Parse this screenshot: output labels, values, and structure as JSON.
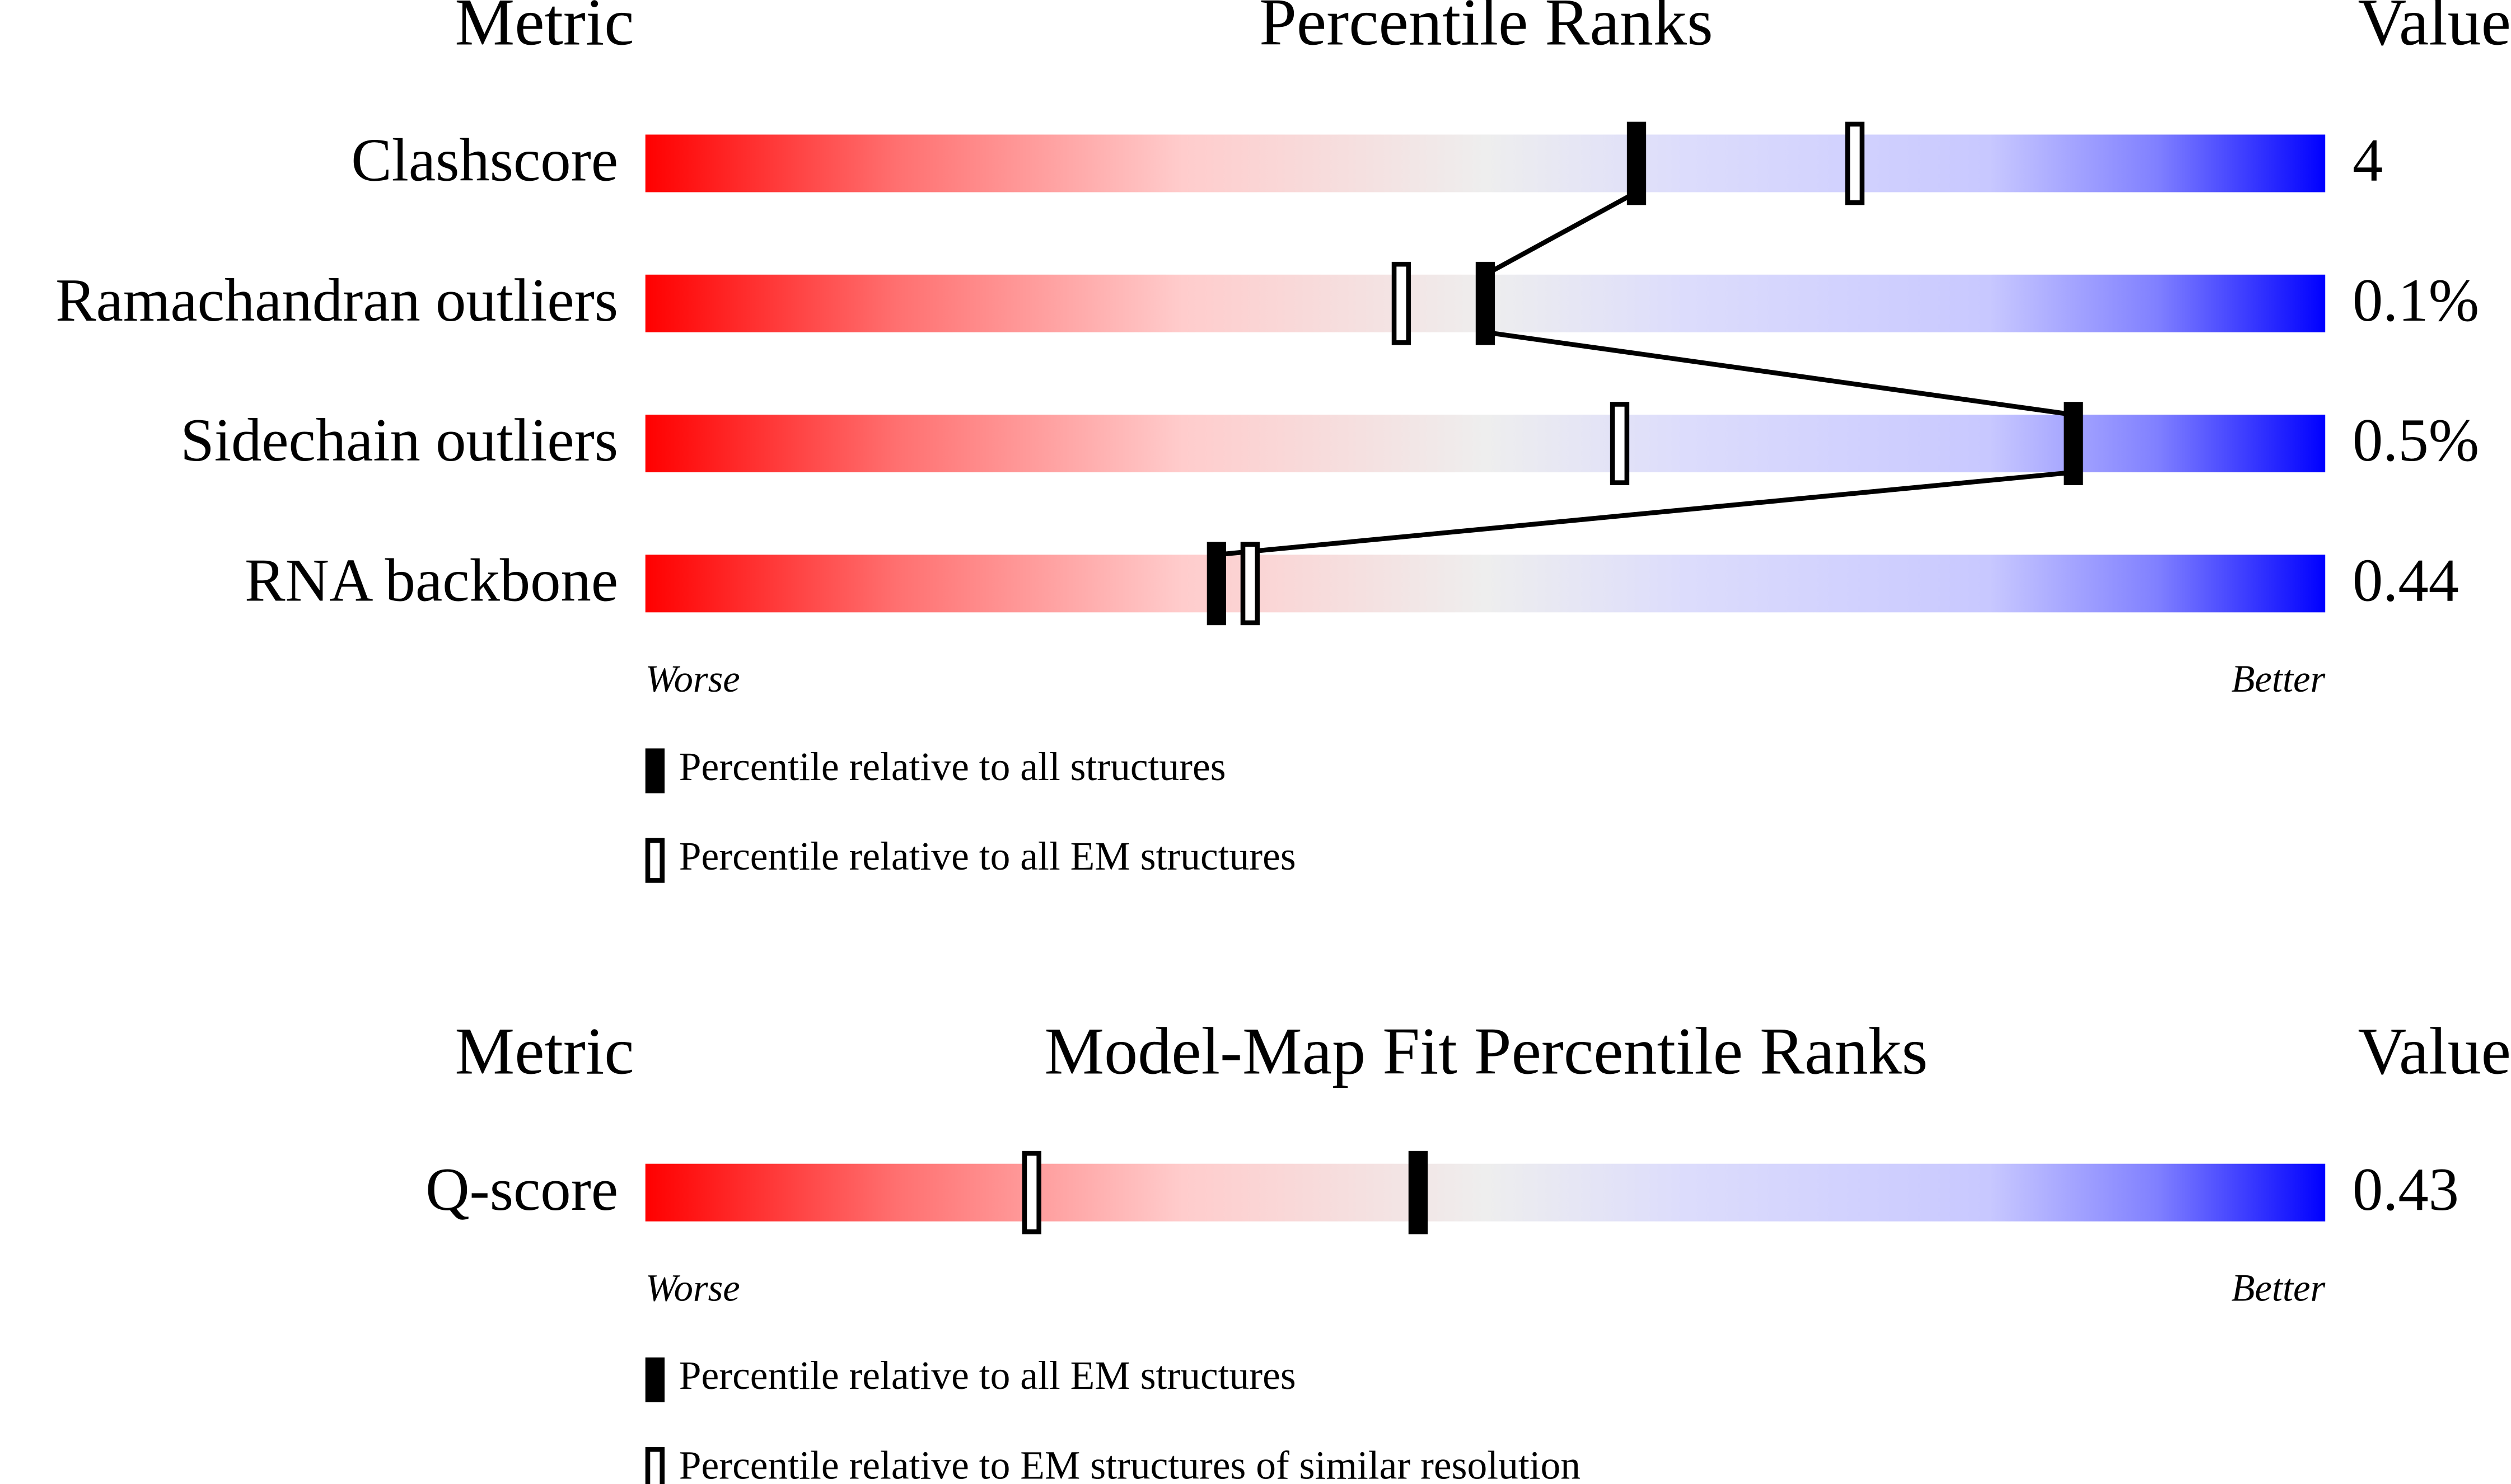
{
  "panels": [
    {
      "headers": {
        "metric": "Metric",
        "title": "Percentile Ranks",
        "value": "Value"
      },
      "xlim": [
        0,
        100
      ],
      "rows": [
        {
          "metric": "Clashscore",
          "value": "4",
          "filled": 59,
          "open": 72
        },
        {
          "metric": "Ramachandran outliers",
          "value": "0.1%",
          "filled": 50,
          "open": 45
        },
        {
          "metric": "Sidechain outliers",
          "value": "0.5%",
          "filled": 85,
          "open": 58
        },
        {
          "metric": "RNA backbone",
          "value": "0.44",
          "filled": 34,
          "open": 36
        }
      ],
      "worse": "Worse",
      "better": "Better",
      "legend": {
        "filled": "Percentile relative to all structures",
        "open": "Percentile relative to all EM structures"
      }
    },
    {
      "headers": {
        "metric": "Metric",
        "title": "Model-Map Fit Percentile Ranks",
        "value": "Value"
      },
      "xlim": [
        0,
        100
      ],
      "rows": [
        {
          "metric": "Q-score",
          "value": "0.43",
          "filled": 46,
          "open": 23
        }
      ],
      "worse": "Worse",
      "better": "Better",
      "legend": {
        "filled": "Percentile relative to all EM structures",
        "open": "Percentile relative to EM structures of similar resolution"
      }
    }
  ]
}
